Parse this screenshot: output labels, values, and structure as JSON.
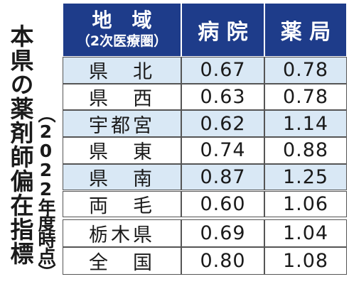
{
  "title": "本県の薬剤師偏在指標",
  "subtitle": "（2022年度時点）",
  "table": {
    "header": {
      "region": "地　域",
      "region_note": "（2次医療圏）",
      "hospital": "病 院",
      "pharmacy": "薬 局"
    },
    "rows": [
      [
        "県　北",
        "0.67",
        "0.78"
      ],
      [
        "県　西",
        "0.63",
        "0.78"
      ],
      [
        "宇都宮",
        "0.62",
        "1.14"
      ],
      [
        "県　東",
        "0.74",
        "0.88"
      ],
      [
        "県　南",
        "0.87",
        "1.25"
      ],
      [
        "両　毛",
        "0.60",
        "1.06"
      ],
      [
        "栃木県",
        "0.69",
        "1.04"
      ],
      [
        "全　国",
        "0.80",
        "1.08"
      ]
    ]
  }
}
